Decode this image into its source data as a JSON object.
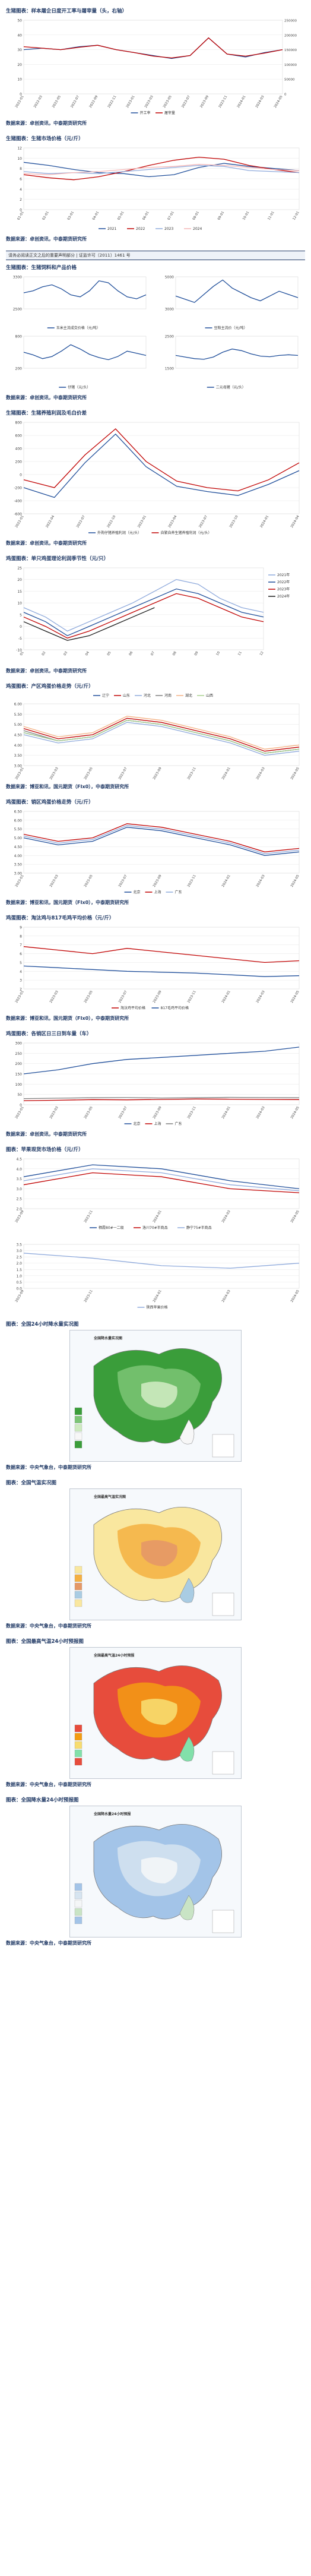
{
  "sections": [
    {
      "title": "生猪图表：样本屠企日度开工率与屠宰量（头，右轴）",
      "source": "数据来源：卓创资讯，中泰期货研究所",
      "chart_data": {
        "type": "line",
        "x": [
          "2022-01",
          "2022-03",
          "2022-05",
          "2022-07",
          "2022-09",
          "2022-11",
          "2023-01",
          "2023-03",
          "2023-05",
          "2023-07",
          "2023-09",
          "2023-11",
          "2024-01",
          "2024-03",
          "2024-05"
        ],
        "ylim": [
          0,
          50
        ],
        "y2lim": [
          0,
          250000
        ],
        "yticks": [
          "0",
          "10",
          "20",
          "30",
          "40",
          "50"
        ],
        "y2ticks": [
          "0",
          "50000",
          "100000",
          "150000",
          "200000",
          "250000"
        ],
        "series": [
          {
            "name": "开工率",
            "color": "#1f4e9a",
            "axis": "left",
            "values": [
              30,
              31,
              30,
              32,
              33,
              30,
              28,
              26,
              24,
              26,
              38,
              27,
              25,
              28,
              30
            ]
          },
          {
            "name": "屠宰量",
            "color": "#c00000",
            "axis": "right",
            "values": [
              160000,
              155000,
              150000,
              158000,
              165000,
              150000,
              140000,
              128000,
              122000,
              130000,
              190000,
              135000,
              128000,
              138000,
              150000
            ]
          }
        ],
        "legend": "bottom"
      }
    },
    {
      "title": "生猪图表：生猪市场价格（元/斤）",
      "source": "数据来源：卓创资讯，中泰期货研究所",
      "chart_data": {
        "type": "line",
        "x": [
          "01-01",
          "02-01",
          "03-01",
          "04-01",
          "05-01",
          "06-01",
          "07-01",
          "08-01",
          "09-01",
          "10-01",
          "11-01",
          "12-01"
        ],
        "ylim": [
          0,
          12
        ],
        "yticks": [
          "0",
          "2",
          "4",
          "6",
          "8",
          "10",
          "12"
        ],
        "series": [
          {
            "name": "2021",
            "color": "#1f4e9a",
            "values": [
              9.2,
              8.6,
              7.8,
              7.2,
              7.0,
              6.4,
              6.8,
              8.2,
              9.0,
              8.4,
              8.0,
              7.6
            ]
          },
          {
            "name": "2022",
            "color": "#c00000",
            "values": [
              6.8,
              6.2,
              5.8,
              6.4,
              7.4,
              8.6,
              9.6,
              10.2,
              9.8,
              8.6,
              7.8,
              7.2
            ]
          },
          {
            "name": "2023",
            "color": "#8faadc",
            "values": [
              7.4,
              7.0,
              7.2,
              7.0,
              7.4,
              7.8,
              8.2,
              8.6,
              8.4,
              7.6,
              7.4,
              7.2
            ]
          },
          {
            "name": "2024",
            "color": "#f4b6b6",
            "values": [
              7.0,
              6.8,
              7.2,
              7.4,
              7.8,
              8.2,
              8.4,
              8.8,
              8.6,
              8.2,
              7.8,
              7.6
            ]
          }
        ],
        "legend": "bottom"
      }
    }
  ],
  "banner": "请务必阅读正文之后的重要声明部分 | 证监许可〔2011〕1461 号",
  "feed": {
    "title": "生猪图表：生猪饲料和产品价格",
    "source": "数据来源：卓创资讯，中泰期货研究所",
    "panels": [
      {
        "legend": "玉米主流成交价格（元/吨）",
        "color": "#1f4e9a",
        "ylim": [
          2500,
          3300
        ],
        "yticks": [
          "2500",
          "3300"
        ],
        "values": [
          2900,
          2950,
          3050,
          3100,
          3000,
          2850,
          2800,
          2950,
          3200,
          3150,
          2950,
          2800,
          2750,
          2850
        ]
      },
      {
        "legend": "豆粕主流价（元/吨）",
        "color": "#1f4e9a",
        "ylim": [
          3000,
          5000
        ],
        "yticks": [
          "3000",
          "5000"
        ],
        "values": [
          3800,
          3600,
          3400,
          3900,
          4400,
          4800,
          4300,
          4000,
          3700,
          3500,
          3800,
          4100,
          3900,
          3700
        ]
      },
      {
        "legend": "仔猪（元/头）",
        "color": "#1f4e9a",
        "ylim": [
          200,
          800
        ],
        "yticks": [
          "200",
          "800"
        ],
        "values": [
          500,
          450,
          380,
          420,
          520,
          640,
          560,
          460,
          400,
          360,
          420,
          520,
          480,
          440
        ]
      },
      {
        "legend": "二元母猪（元/头）",
        "color": "#1f4e9a",
        "ylim": [
          1500,
          2500
        ],
        "yticks": [
          "1500",
          "2500"
        ],
        "values": [
          1900,
          1850,
          1800,
          1780,
          1850,
          2000,
          2100,
          2050,
          1950,
          1880,
          1860,
          1900,
          1920,
          1900
        ]
      }
    ]
  },
  "sections2": [
    {
      "title": "生猪图表：生猪养殖利润及毛白价差",
      "source": "数据来源：卓创资讯，中泰期货研究所",
      "chart_data": {
        "type": "line",
        "x": [
          "2022-01",
          "2022-04",
          "2022-07",
          "2022-10",
          "2023-01",
          "2023-04",
          "2023-07",
          "2023-10",
          "2024-01",
          "2024-04"
        ],
        "ylim": [
          -600,
          800
        ],
        "yticks": [
          "-600",
          "-400",
          "-200",
          "0",
          "200",
          "400",
          "600",
          "800"
        ],
        "series": [
          {
            "name": "外购仔猪养殖利润（元/头）",
            "color": "#1f4e9a",
            "values": [
              -200,
              -350,
              180,
              620,
              120,
              -180,
              -260,
              -320,
              -150,
              60
            ]
          },
          {
            "name": "自繁自养生猪养殖利润（元/头）",
            "color": "#c00000",
            "values": [
              -80,
              -200,
              300,
              700,
              200,
              -100,
              -200,
              -250,
              -80,
              180
            ]
          }
        ],
        "legend": "bottom"
      }
    },
    {
      "title": "鸡蛋图表：单只鸡蛋理论利润季节性（元/只）",
      "source": "数据来源：卓创资讯，中泰期货研究所",
      "chart_data": {
        "type": "line",
        "x": [
          "01",
          "02",
          "03",
          "04",
          "05",
          "06",
          "07",
          "08",
          "09",
          "10",
          "11",
          "12"
        ],
        "ylim": [
          -10,
          25
        ],
        "yticks": [
          "-10",
          "-5",
          "0",
          "5",
          "10",
          "15",
          "20",
          "25"
        ],
        "series": [
          {
            "name": "2021年",
            "color": "#8faadc",
            "values": [
              8,
              4,
              -2,
              2,
              6,
              10,
              15,
              20,
              18,
              12,
              8,
              6
            ]
          },
          {
            "name": "2022年",
            "color": "#1f4e9a",
            "values": [
              6,
              2,
              -4,
              0,
              4,
              8,
              12,
              16,
              14,
              10,
              6,
              4
            ]
          },
          {
            "name": "2023年",
            "color": "#c00000",
            "values": [
              4,
              0,
              -5,
              -2,
              2,
              6,
              10,
              14,
              12,
              8,
              4,
              2
            ]
          },
          {
            "name": "2024年",
            "color": "#1a1a1a",
            "values": [
              2,
              -2,
              -6,
              -4,
              0,
              4,
              8,
              null,
              null,
              null,
              null,
              null
            ]
          }
        ],
        "legend": "right"
      }
    },
    {
      "title": "鸡蛋图表：产区鸡蛋价格走势（元/斤）",
      "source": "数据来源：博亚和讯，国元期货（FIx0），中泰期货研究所",
      "chart_data": {
        "type": "line",
        "x": [
          "2023-01",
          "2023-03",
          "2023-05",
          "2023-07",
          "2023-09",
          "2023-11",
          "2024-01",
          "2024-03",
          "2024-05"
        ],
        "ylim": [
          3.0,
          6.0
        ],
        "yticks": [
          "3.00",
          "3.50",
          "4.00",
          "4.50",
          "5.00",
          "5.50",
          "6.00"
        ],
        "series": [
          {
            "name": "辽宁",
            "color": "#1f4e9a",
            "values": [
              4.6,
              4.2,
              4.4,
              5.2,
              5.0,
              4.6,
              4.2,
              3.6,
              3.8
            ]
          },
          {
            "name": "山东",
            "color": "#c00000",
            "values": [
              4.8,
              4.3,
              4.5,
              5.3,
              5.1,
              4.7,
              4.3,
              3.7,
              3.9
            ]
          },
          {
            "name": "河北",
            "color": "#8faadc",
            "values": [
              4.5,
              4.1,
              4.3,
              5.1,
              4.9,
              4.5,
              4.1,
              3.5,
              3.7
            ]
          },
          {
            "name": "河南",
            "color": "#7f7f7f",
            "values": [
              4.7,
              4.2,
              4.4,
              5.2,
              5.0,
              4.6,
              4.2,
              3.6,
              3.8
            ]
          },
          {
            "name": "湖北",
            "color": "#f4b183",
            "values": [
              4.9,
              4.4,
              4.6,
              5.4,
              5.2,
              4.8,
              4.4,
              3.8,
              4.0
            ]
          },
          {
            "name": "山西",
            "color": "#a9d18e",
            "values": [
              4.6,
              4.2,
              4.4,
              5.2,
              5.0,
              4.6,
              4.2,
              3.6,
              3.8
            ]
          }
        ],
        "legend": "top"
      }
    },
    {
      "title": "鸡蛋图表：销区鸡蛋价格走势（元/斤）",
      "source": "数据来源：博亚和讯，国元期货（FIx0），中泰期货研究所",
      "chart_data": {
        "type": "line",
        "x": [
          "2023-01",
          "2023-03",
          "2023-05",
          "2023-07",
          "2023-09",
          "2023-11",
          "2024-01",
          "2024-03",
          "2024-05"
        ],
        "ylim": [
          3.0,
          6.5
        ],
        "yticks": [
          "3.00",
          "3.50",
          "4.00",
          "4.50",
          "5.00",
          "5.50",
          "6.00",
          "6.50"
        ],
        "series": [
          {
            "name": "北京",
            "color": "#1f4e9a",
            "values": [
              5.0,
              4.6,
              4.8,
              5.6,
              5.4,
              5.0,
              4.6,
              4.0,
              4.2
            ]
          },
          {
            "name": "上海",
            "color": "#c00000",
            "values": [
              5.2,
              4.8,
              5.0,
              5.8,
              5.6,
              5.2,
              4.8,
              4.2,
              4.4
            ]
          },
          {
            "name": "广东",
            "color": "#8faadc",
            "values": [
              5.1,
              4.7,
              4.9,
              5.7,
              5.5,
              5.1,
              4.7,
              4.1,
              4.3
            ]
          }
        ],
        "legend": "bottom"
      }
    },
    {
      "title": "鸡蛋图表：淘汰鸡与817毛鸡平均价格（元/斤）",
      "source": "数据来源：博亚和讯，国元期货（FIx0），中泰期货研究所",
      "chart_data": {
        "type": "line",
        "x": [
          "2023-01",
          "2023-03",
          "2023-05",
          "2023-07",
          "2023-09",
          "2023-11",
          "2024-01",
          "2024-03",
          "2024-05"
        ],
        "ylim": [
          2,
          9
        ],
        "yticks": [
          "2",
          "3",
          "4",
          "5",
          "6",
          "7",
          "8",
          "9"
        ],
        "series": [
          {
            "name": "淘汰鸡平均价格",
            "color": "#c00000",
            "values": [
              6.8,
              6.4,
              6.0,
              6.6,
              6.2,
              5.8,
              5.4,
              5.0,
              5.2
            ]
          },
          {
            "name": "817毛鸡平均价格",
            "color": "#1f4e9a",
            "values": [
              4.6,
              4.4,
              4.2,
              4.0,
              3.9,
              3.8,
              3.6,
              3.4,
              3.5
            ]
          }
        ],
        "legend": "bottom"
      }
    },
    {
      "title": "鸡蛋图表：各销区日三日到车量（车）",
      "source": "数据来源：卓创资讯，中泰期货研究所",
      "chart_data": {
        "type": "line",
        "x": [
          "2023-01",
          "2023-03",
          "2023-05",
          "2023-07",
          "2023-09",
          "2023-11",
          "2024-01",
          "2024-03",
          "2024-05"
        ],
        "ylim": [
          0,
          300
        ],
        "yticks": [
          "0",
          "50",
          "100",
          "150",
          "200",
          "250",
          "300"
        ],
        "series": [
          {
            "name": "北京",
            "color": "#1f4e9a",
            "values": [
              150,
              170,
              200,
              220,
              230,
              240,
              250,
              260,
              280
            ]
          },
          {
            "name": "上海",
            "color": "#c00000",
            "values": [
              20,
              22,
              25,
              24,
              26,
              28,
              27,
              26,
              25
            ]
          },
          {
            "name": "广东",
            "color": "#7f7f7f",
            "values": [
              30,
              32,
              34,
              35,
              33,
              34,
              36,
              35,
              34
            ]
          }
        ],
        "legend": "bottom"
      }
    },
    {
      "title": "图表：苹果现货市场价格（元/斤）",
      "source": "",
      "chart_data": {
        "type": "line",
        "x": [
          "2023-09",
          "2023-11",
          "2024-01",
          "2024-03",
          "2024-05"
        ],
        "ylim": [
          2.0,
          4.5
        ],
        "yticks": [
          "2.0",
          "2.5",
          "3.0",
          "3.5",
          "4.0",
          "4.5"
        ],
        "series": [
          {
            "name": "栖霞80#一二级",
            "color": "#1f4e9a",
            "values": [
              3.6,
              4.2,
              4.0,
              3.4,
              3.0
            ]
          },
          {
            "name": "洛川70#半商品",
            "color": "#c00000",
            "values": [
              3.2,
              3.8,
              3.6,
              3.0,
              2.8
            ]
          },
          {
            "name": "静宁75#半商品",
            "color": "#8faadc",
            "values": [
              3.4,
              4.0,
              3.8,
              3.2,
              2.9
            ]
          }
        ],
        "legend": "bottom"
      }
    },
    {
      "title": "",
      "source": "",
      "chart_data": {
        "type": "line",
        "x": [
          "2023-09",
          "2023-11",
          "2024-01",
          "2024-03",
          "2024-05"
        ],
        "ylim": [
          0,
          3.5
        ],
        "yticks": [
          "0.0",
          "0.5",
          "1.0",
          "1.5",
          "2.0",
          "2.5",
          "3.0",
          "3.5"
        ],
        "series": [
          {
            "name": "陕西苹果价格",
            "color": "#8faadc",
            "values": [
              2.8,
              2.4,
              1.8,
              1.6,
              2.0
            ]
          }
        ],
        "legend": "bottom"
      }
    }
  ],
  "maps": [
    {
      "title": "图表：全国24小时降水量实况图",
      "source": "数据来源：中央气象台，中泰期货研究所",
      "map_title": "全国降水量实况图"
    },
    {
      "title": "图表：全国气温实况图",
      "source": "数据来源：中央气象台，中泰期货研究所",
      "map_title": "全国最高气温实况图"
    },
    {
      "title": "图表：全国最高气温24小时预报图",
      "source": "数据来源：中央气象台，中泰期货研究所",
      "map_title": "全国最高气温24小时预报"
    },
    {
      "title": "图表：全国降水量24小时预报图",
      "source": "数据来源：中央气象台，中泰期货研究所",
      "map_title": "全国降水量24小时预报"
    }
  ]
}
